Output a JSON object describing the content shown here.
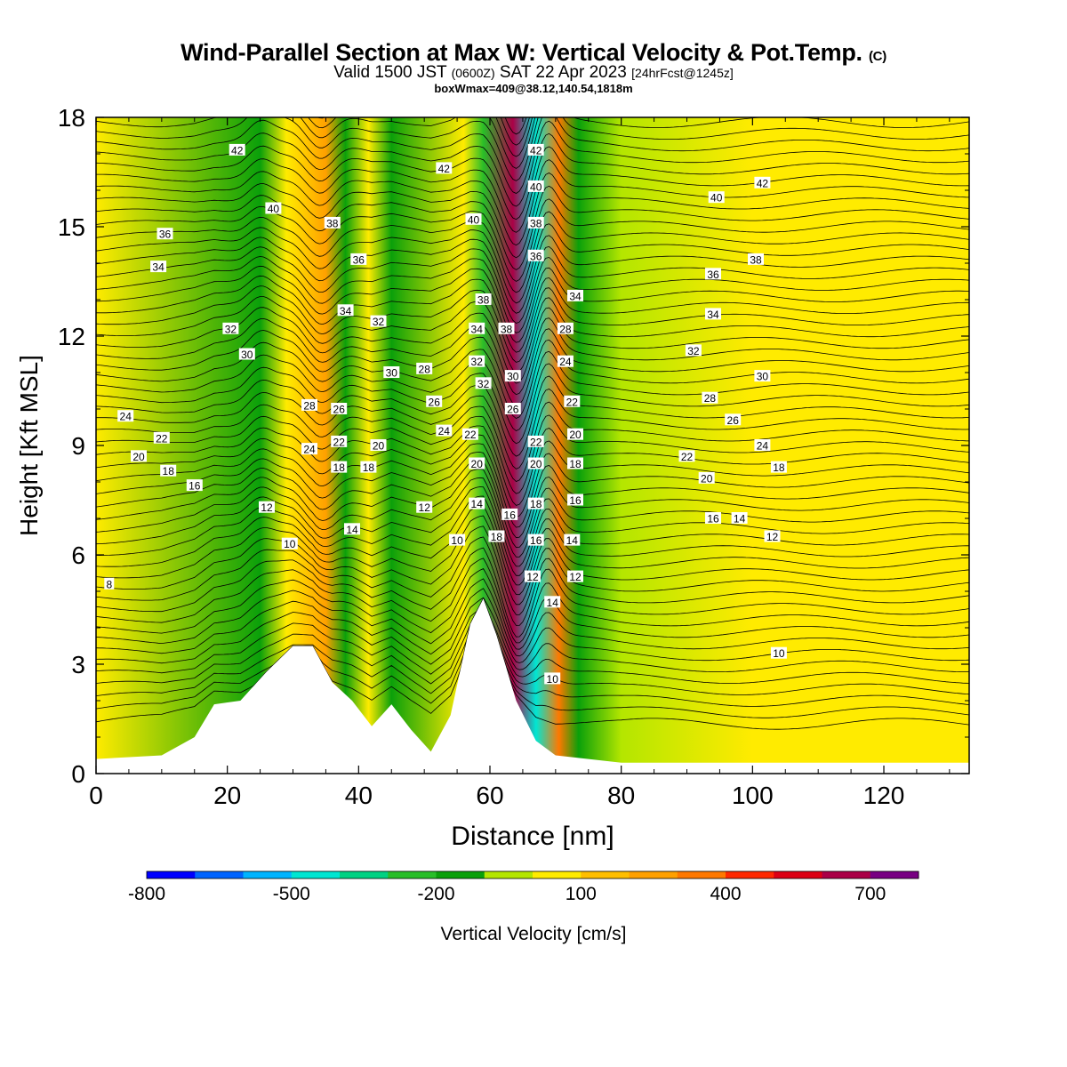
{
  "header": {
    "title": "Wind-Parallel Section at Max W: Vertical Velocity & Pot.Temp.",
    "title_mark": "(C)",
    "valid_text": "Valid 1500 JST",
    "utc_text": "(0600Z)",
    "date_text": "SAT 22 Apr 2023",
    "forecast_text": "[24hrFcst@1245z]",
    "box_text": "boxWmax=409@38.12,140.54,1818m"
  },
  "chart_data": {
    "type": "heatmap",
    "title": "Wind-Parallel Section at Max W: Vertical Velocity & Pot.Temp.",
    "xlabel": "Distance [nm]",
    "ylabel": "Height [Kft MSL]",
    "xlim": [
      0,
      133
    ],
    "ylim": [
      0,
      18
    ],
    "x_ticks": [
      0,
      20,
      40,
      60,
      80,
      100,
      120
    ],
    "y_ticks": [
      0,
      3,
      6,
      9,
      12,
      15,
      18
    ],
    "x_tick_labels": [
      "0",
      "20",
      "40",
      "60",
      "80",
      "100",
      "120"
    ],
    "y_tick_labels": [
      "0",
      "3",
      "6",
      "9",
      "12",
      "15",
      "18"
    ],
    "colorbar": {
      "label": "Vertical Velocity [cm/s]",
      "levels": [
        -800,
        -700,
        -600,
        -500,
        -400,
        -300,
        -200,
        -100,
        0,
        100,
        200,
        300,
        400,
        500,
        600,
        700,
        800
      ],
      "tick_values": [
        -800,
        -500,
        -200,
        100,
        400,
        700
      ],
      "tick_labels": [
        "-800",
        "-500",
        "-200",
        "100",
        "400",
        "700"
      ],
      "colors": [
        "#0000ff",
        "#0064ff",
        "#00b4ff",
        "#00e6d2",
        "#00d282",
        "#28be28",
        "#0aa00a",
        "#b4e600",
        "#ffeb00",
        "#ffbe00",
        "#ffa000",
        "#ff7800",
        "#ff2800",
        "#dc0014",
        "#aa0046",
        "#780082"
      ]
    },
    "vertical_velocity_bands": [
      {
        "x": 0,
        "w": 0
      },
      {
        "x": 25,
        "w": -150
      },
      {
        "x": 29,
        "w": 20
      },
      {
        "x": 35,
        "w": 250
      },
      {
        "x": 38,
        "w": -150
      },
      {
        "x": 41.5,
        "w": 40
      },
      {
        "x": 45,
        "w": -150
      },
      {
        "x": 56,
        "w": 80
      },
      {
        "x": 59,
        "w": -250
      },
      {
        "x": 63.5,
        "w": 650
      },
      {
        "x": 67,
        "w": -480
      },
      {
        "x": 70.5,
        "w": 380
      },
      {
        "x": 73.5,
        "w": -200
      },
      {
        "x": 80,
        "w": -20
      },
      {
        "x": 100,
        "w": 30
      },
      {
        "x": 133,
        "w": 10
      }
    ],
    "terrain": {
      "x": [
        0,
        10,
        15,
        18,
        22,
        26,
        30,
        33,
        36,
        39,
        42,
        45,
        48,
        51,
        54,
        57,
        59,
        61,
        64,
        67,
        70,
        75,
        80,
        133
      ],
      "height_kft": [
        0.4,
        0.5,
        1.0,
        1.9,
        2.0,
        2.8,
        3.5,
        3.5,
        2.5,
        2.0,
        1.3,
        1.9,
        1.2,
        0.6,
        1.6,
        4.1,
        4.8,
        3.8,
        2.0,
        0.9,
        0.5,
        0.4,
        0.3,
        0.3
      ]
    },
    "theta_contours": {
      "label_values": [
        8,
        10,
        12,
        14,
        16,
        18,
        20,
        22,
        24,
        26,
        28,
        30,
        32,
        34,
        36,
        38,
        40,
        42
      ],
      "labels": [
        {
          "x": 2,
          "y": 5.2,
          "v": "8"
        },
        {
          "x": 29.5,
          "y": 6.3,
          "v": "10"
        },
        {
          "x": 55,
          "y": 6.4,
          "v": "10"
        },
        {
          "x": 104,
          "y": 3.3,
          "v": "10"
        },
        {
          "x": 69.5,
          "y": 2.6,
          "v": "10"
        },
        {
          "x": 26,
          "y": 7.3,
          "v": "12"
        },
        {
          "x": 50,
          "y": 7.3,
          "v": "12"
        },
        {
          "x": 66.5,
          "y": 5.4,
          "v": "12"
        },
        {
          "x": 73,
          "y": 5.4,
          "v": "12"
        },
        {
          "x": 103,
          "y": 6.5,
          "v": "12"
        },
        {
          "x": 39,
          "y": 6.7,
          "v": "14"
        },
        {
          "x": 58,
          "y": 7.4,
          "v": "14"
        },
        {
          "x": 72.5,
          "y": 6.4,
          "v": "14"
        },
        {
          "x": 69.5,
          "y": 4.7,
          "v": "14"
        },
        {
          "x": 98,
          "y": 7.0,
          "v": "14"
        },
        {
          "x": 15,
          "y": 7.9,
          "v": "16"
        },
        {
          "x": 63,
          "y": 7.1,
          "v": "16"
        },
        {
          "x": 67,
          "y": 6.4,
          "v": "16"
        },
        {
          "x": 73,
          "y": 7.5,
          "v": "16"
        },
        {
          "x": 94,
          "y": 7.0,
          "v": "16"
        },
        {
          "x": 11,
          "y": 8.3,
          "v": "18"
        },
        {
          "x": 37,
          "y": 8.4,
          "v": "18"
        },
        {
          "x": 41.5,
          "y": 8.4,
          "v": "18"
        },
        {
          "x": 61,
          "y": 6.5,
          "v": "18"
        },
        {
          "x": 67,
          "y": 7.4,
          "v": "18"
        },
        {
          "x": 73,
          "y": 8.5,
          "v": "18"
        },
        {
          "x": 104,
          "y": 8.4,
          "v": "18"
        },
        {
          "x": 6.5,
          "y": 8.7,
          "v": "20"
        },
        {
          "x": 43,
          "y": 9.0,
          "v": "20"
        },
        {
          "x": 58,
          "y": 8.5,
          "v": "20"
        },
        {
          "x": 67,
          "y": 8.5,
          "v": "20"
        },
        {
          "x": 73,
          "y": 9.3,
          "v": "20"
        },
        {
          "x": 93,
          "y": 8.1,
          "v": "20"
        },
        {
          "x": 10,
          "y": 9.2,
          "v": "22"
        },
        {
          "x": 37,
          "y": 9.1,
          "v": "22"
        },
        {
          "x": 57,
          "y": 9.3,
          "v": "22"
        },
        {
          "x": 67,
          "y": 9.1,
          "v": "22"
        },
        {
          "x": 72.5,
          "y": 10.2,
          "v": "22"
        },
        {
          "x": 90,
          "y": 8.7,
          "v": "22"
        },
        {
          "x": 4.5,
          "y": 9.8,
          "v": "24"
        },
        {
          "x": 32.5,
          "y": 8.9,
          "v": "24"
        },
        {
          "x": 53,
          "y": 9.4,
          "v": "24"
        },
        {
          "x": 71.5,
          "y": 11.3,
          "v": "24"
        },
        {
          "x": 101.5,
          "y": 9.0,
          "v": "24"
        },
        {
          "x": 37,
          "y": 10.0,
          "v": "26"
        },
        {
          "x": 51.5,
          "y": 10.2,
          "v": "26"
        },
        {
          "x": 63.5,
          "y": 10.0,
          "v": "26"
        },
        {
          "x": 97,
          "y": 9.7,
          "v": "26"
        },
        {
          "x": 32.5,
          "y": 10.1,
          "v": "28"
        },
        {
          "x": 50,
          "y": 11.1,
          "v": "28"
        },
        {
          "x": 71.5,
          "y": 12.2,
          "v": "28"
        },
        {
          "x": 93.5,
          "y": 10.3,
          "v": "28"
        },
        {
          "x": 23,
          "y": 11.5,
          "v": "30"
        },
        {
          "x": 45,
          "y": 11.0,
          "v": "30"
        },
        {
          "x": 63.5,
          "y": 10.9,
          "v": "30"
        },
        {
          "x": 101.5,
          "y": 10.9,
          "v": "30"
        },
        {
          "x": 20.5,
          "y": 12.2,
          "v": "32"
        },
        {
          "x": 43,
          "y": 12.4,
          "v": "32"
        },
        {
          "x": 58,
          "y": 11.3,
          "v": "32"
        },
        {
          "x": 59,
          "y": 10.7,
          "v": "32"
        },
        {
          "x": 91,
          "y": 11.6,
          "v": "32"
        },
        {
          "x": 9.5,
          "y": 13.9,
          "v": "34"
        },
        {
          "x": 38,
          "y": 12.7,
          "v": "34"
        },
        {
          "x": 58,
          "y": 12.2,
          "v": "34"
        },
        {
          "x": 73,
          "y": 13.1,
          "v": "34"
        },
        {
          "x": 94,
          "y": 12.6,
          "v": "34"
        },
        {
          "x": 10.5,
          "y": 14.8,
          "v": "36"
        },
        {
          "x": 40,
          "y": 14.1,
          "v": "36"
        },
        {
          "x": 67,
          "y": 14.2,
          "v": "36"
        },
        {
          "x": 94,
          "y": 13.7,
          "v": "36"
        },
        {
          "x": 36,
          "y": 15.1,
          "v": "38"
        },
        {
          "x": 59,
          "y": 13.0,
          "v": "38"
        },
        {
          "x": 62.5,
          "y": 12.2,
          "v": "38"
        },
        {
          "x": 67,
          "y": 15.1,
          "v": "38"
        },
        {
          "x": 100.5,
          "y": 14.1,
          "v": "38"
        },
        {
          "x": 27,
          "y": 15.5,
          "v": "40"
        },
        {
          "x": 57.5,
          "y": 15.2,
          "v": "40"
        },
        {
          "x": 67,
          "y": 16.1,
          "v": "40"
        },
        {
          "x": 94.5,
          "y": 15.8,
          "v": "40"
        },
        {
          "x": 21.5,
          "y": 17.1,
          "v": "42"
        },
        {
          "x": 53,
          "y": 16.6,
          "v": "42"
        },
        {
          "x": 67,
          "y": 17.1,
          "v": "42"
        },
        {
          "x": 101.5,
          "y": 16.2,
          "v": "42"
        }
      ]
    }
  }
}
